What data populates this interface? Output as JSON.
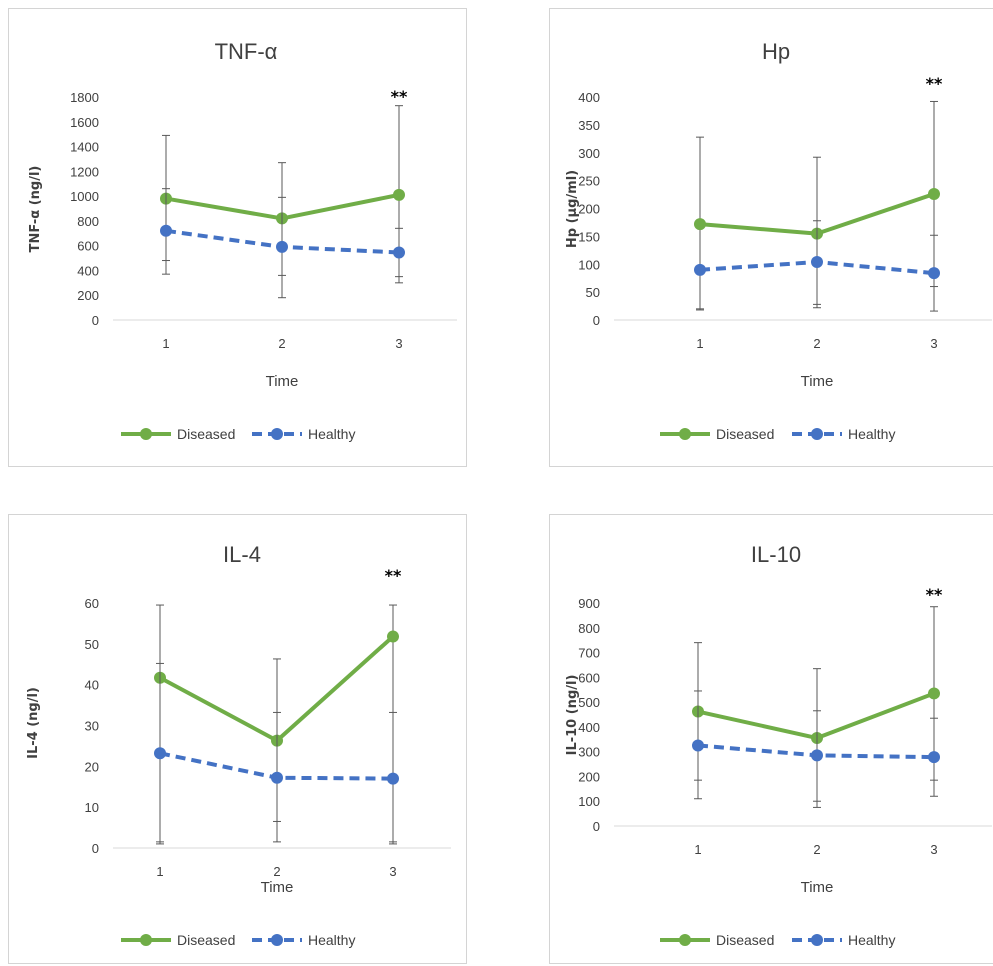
{
  "chart_data": [
    {
      "type": "line",
      "title": "TNF-α",
      "xlabel": "Time",
      "ylabel": "TNF-α (ng/l)",
      "categories": [
        "1",
        "2",
        "3"
      ],
      "ylim": [
        0,
        1800
      ],
      "yticks": [
        0,
        200,
        400,
        600,
        800,
        1000,
        1200,
        1400,
        1600,
        1800
      ],
      "series": [
        {
          "name": "Diseased",
          "values": [
            980,
            820,
            1010
          ],
          "err_low": [
            370,
            180,
            300
          ],
          "err_high": [
            1490,
            1270,
            1730
          ],
          "color": "#70ad47",
          "dash": false
        },
        {
          "name": "Healthy",
          "values": [
            720,
            590,
            545
          ],
          "err_low": [
            480,
            360,
            350
          ],
          "err_high": [
            1060,
            990,
            740
          ],
          "color": "#4472c4",
          "dash": true
        }
      ],
      "annotation": {
        "text": "**",
        "category": "3"
      },
      "legend": "bottom",
      "grid": false
    },
    {
      "type": "line",
      "title": "Hp",
      "xlabel": "Time",
      "ylabel": "Hp (µg/ml)",
      "categories": [
        "1",
        "2",
        "3"
      ],
      "ylim": [
        0,
        400
      ],
      "yticks": [
        0,
        50,
        100,
        150,
        200,
        250,
        300,
        350,
        400
      ],
      "series": [
        {
          "name": "Diseased",
          "values": [
            172,
            155,
            226
          ],
          "err_low": [
            18,
            22,
            16
          ],
          "err_high": [
            328,
            292,
            392
          ],
          "color": "#70ad47",
          "dash": false
        },
        {
          "name": "Healthy",
          "values": [
            90,
            104,
            84
          ],
          "err_low": [
            20,
            28,
            60
          ],
          "err_high": [
            96,
            178,
            152
          ],
          "color": "#4472c4",
          "dash": true
        }
      ],
      "annotation": {
        "text": "**",
        "category": "3"
      },
      "legend": "bottom",
      "grid": false
    },
    {
      "type": "line",
      "title": "IL-4",
      "xlabel": "Time",
      "ylabel": "IL-4 (ng/l)",
      "categories": [
        "1",
        "2",
        "3"
      ],
      "ylim": [
        0,
        60
      ],
      "yticks": [
        0,
        10,
        20,
        30,
        40,
        50,
        60
      ],
      "series": [
        {
          "name": "Diseased",
          "values": [
            41.7,
            26.3,
            51.8
          ],
          "err_low": [
            1,
            1.5,
            1
          ],
          "err_high": [
            59.5,
            46.3,
            59.5
          ],
          "color": "#70ad47",
          "dash": false
        },
        {
          "name": "Healthy",
          "values": [
            23.2,
            17.2,
            17.0
          ],
          "err_low": [
            1.5,
            6.5,
            1.5
          ],
          "err_high": [
            45.2,
            33.2,
            33.2
          ],
          "color": "#4472c4",
          "dash": true
        }
      ],
      "annotation": {
        "text": "**",
        "category": "3"
      },
      "legend": "bottom",
      "grid": false
    },
    {
      "type": "line",
      "title": "IL-10",
      "xlabel": "Time",
      "ylabel": "IL-10 (ng/l)",
      "categories": [
        "1",
        "2",
        "3"
      ],
      "ylim": [
        0,
        900
      ],
      "yticks": [
        0,
        100,
        200,
        300,
        400,
        500,
        600,
        700,
        800,
        900
      ],
      "series": [
        {
          "name": "Diseased",
          "values": [
            462,
            355,
            535
          ],
          "err_low": [
            110,
            75,
            120
          ],
          "err_high": [
            740,
            635,
            885
          ],
          "color": "#70ad47",
          "dash": false
        },
        {
          "name": "Healthy",
          "values": [
            325,
            285,
            278
          ],
          "err_low": [
            185,
            100,
            185
          ],
          "err_high": [
            545,
            465,
            435
          ],
          "color": "#4472c4",
          "dash": true
        }
      ],
      "annotation": {
        "text": "**",
        "category": "3"
      },
      "legend": "bottom",
      "grid": false
    }
  ]
}
